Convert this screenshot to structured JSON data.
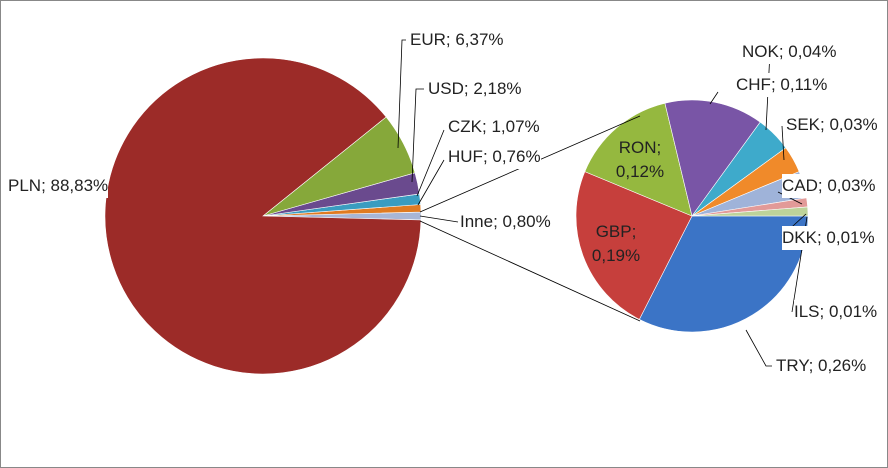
{
  "chart_data": [
    {
      "type": "pie",
      "values": [
        88.83,
        6.37,
        2.18,
        1.07,
        0.76,
        0.8
      ],
      "value_labels": [
        "PLN; 88,83%",
        "EUR; 6,37%",
        "USD; 2,18%",
        "CZK; 1,07%",
        "HUF; 0,76%",
        "Inne; 0,80%"
      ],
      "colors": [
        "#9c2b28",
        "#86a83a",
        "#6a4a8e",
        "#3a9cc0",
        "#e07b22",
        "#a8b6d6"
      ]
    },
    {
      "type": "pie",
      "values": [
        0.26,
        0.19,
        0.12,
        0.11,
        0.04,
        0.03,
        0.03,
        0.01,
        0.01
      ],
      "value_labels": [
        "TRY; 0,26%",
        "GBP; 0,19%",
        "RON; 0,12%",
        "CHF; 0,11%",
        "NOK; 0,04%",
        "SEK; 0,03%",
        "CAD; 0,03%",
        "DKK; 0,01%",
        "ILS; 0,01%"
      ],
      "colors": [
        "#3b74c6",
        "#c63f3c",
        "#95b83f",
        "#7955a6",
        "#3eaacb",
        "#f08a2a",
        "#9fb3d9",
        "#e29a98",
        "#bdd39a"
      ]
    }
  ]
}
